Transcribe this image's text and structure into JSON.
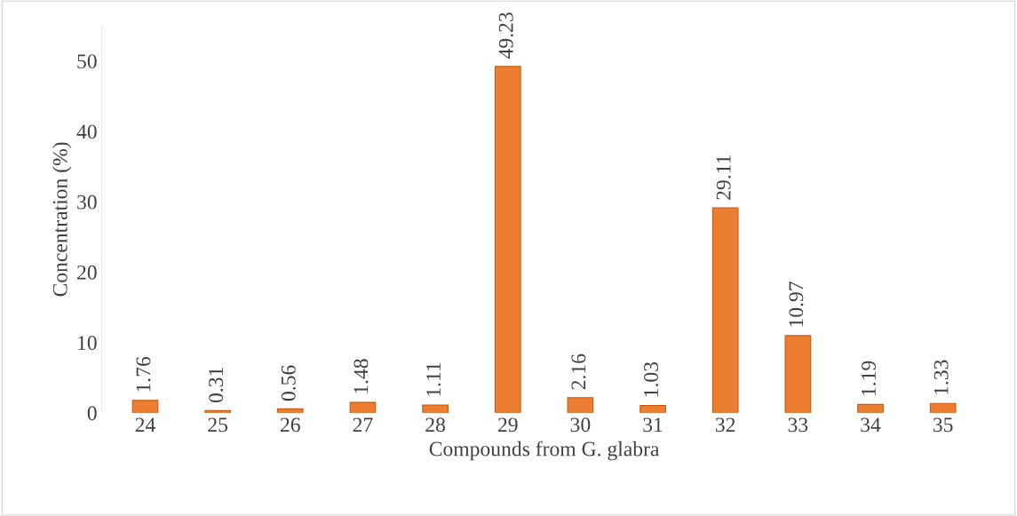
{
  "chart_data": {
    "type": "bar",
    "xlabel": "Compounds from G. glabra",
    "ylabel": "Concentration (%)",
    "categories": [
      "24",
      "25",
      "26",
      "27",
      "28",
      "29",
      "30",
      "31",
      "32",
      "33",
      "34",
      "35"
    ],
    "values": [
      1.76,
      0.31,
      0.56,
      1.48,
      1.11,
      49.23,
      2.16,
      1.03,
      29.11,
      10.97,
      1.19,
      1.33
    ],
    "color": "#ed7d31",
    "ylim": [
      0,
      55
    ],
    "yticks": [
      0,
      10,
      20,
      30,
      40,
      50
    ],
    "data_labels": true,
    "grid": false,
    "legend": false
  }
}
